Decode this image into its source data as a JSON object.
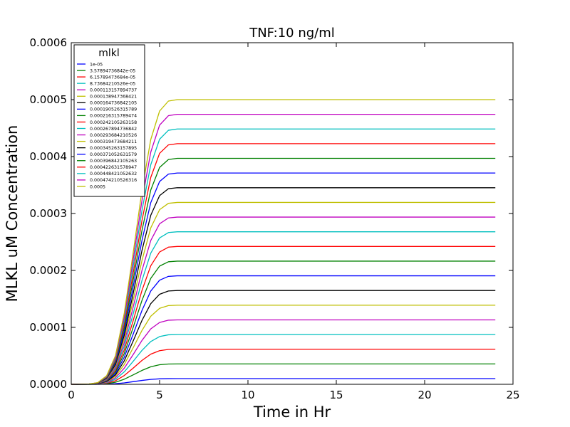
{
  "chart_data": {
    "type": "line",
    "title": "TNF:10 ng/ml",
    "xlabel": "Time in Hr",
    "ylabel": "MLKL uM Concentration",
    "xlim": [
      0,
      25
    ],
    "ylim": [
      0,
      0.0006
    ],
    "xticks": [
      0,
      5,
      10,
      15,
      20,
      25
    ],
    "xtick_labels": [
      "0",
      "5",
      "10",
      "15",
      "20",
      "25"
    ],
    "yticks": [
      0,
      0.0001,
      0.0002,
      0.0003,
      0.0004,
      0.0005,
      0.0006
    ],
    "ytick_labels": [
      "0.0000",
      "0.0001",
      "0.0002",
      "0.0003",
      "0.0004",
      "0.0005",
      "0.0006"
    ],
    "grid": false,
    "legend_title": "mlkl",
    "legend_position": "top-left",
    "x": [
      0,
      1,
      1.5,
      2,
      2.5,
      3,
      3.5,
      4,
      4.5,
      5,
      5.5,
      6,
      8,
      12,
      16,
      20,
      24
    ],
    "curve_shape": [
      0,
      0.001,
      0.006,
      0.03,
      0.1,
      0.25,
      0.46,
      0.68,
      0.86,
      0.96,
      0.995,
      1,
      1,
      1,
      1,
      1,
      1
    ],
    "series": [
      {
        "name": "1e-05",
        "plateau": 1e-05,
        "color": "#0000ff"
      },
      {
        "name": "3.57894736842e-05",
        "plateau": 3.57894736842e-05,
        "color": "#008000"
      },
      {
        "name": "6.15789473684e-05",
        "plateau": 6.15789473684e-05,
        "color": "#ff0000"
      },
      {
        "name": "8.73684210526e-05",
        "plateau": 8.73684210526e-05,
        "color": "#00bfbf"
      },
      {
        "name": "0.000113157894737",
        "plateau": 0.000113157894737,
        "color": "#bf00bf"
      },
      {
        "name": "0.000138947368421",
        "plateau": 0.000138947368421,
        "color": "#bfbf00"
      },
      {
        "name": "0.000164736842105",
        "plateau": 0.000164736842105,
        "color": "#000000"
      },
      {
        "name": "0.000190526315789",
        "plateau": 0.000190526315789,
        "color": "#0000ff"
      },
      {
        "name": "0.000216315789474",
        "plateau": 0.000216315789474,
        "color": "#008000"
      },
      {
        "name": "0.000242105263158",
        "plateau": 0.000242105263158,
        "color": "#ff0000"
      },
      {
        "name": "0.000267894736842",
        "plateau": 0.000267894736842,
        "color": "#00bfbf"
      },
      {
        "name": "0.000293684210526",
        "plateau": 0.000293684210526,
        "color": "#bf00bf"
      },
      {
        "name": "0.000319473684211",
        "plateau": 0.000319473684211,
        "color": "#bfbf00"
      },
      {
        "name": "0.000345263157895",
        "plateau": 0.000345263157895,
        "color": "#000000"
      },
      {
        "name": "0.000371052631579",
        "plateau": 0.000371052631579,
        "color": "#0000ff"
      },
      {
        "name": "0.000396842105263",
        "plateau": 0.000396842105263,
        "color": "#008000"
      },
      {
        "name": "0.000422631578947",
        "plateau": 0.000422631578947,
        "color": "#ff0000"
      },
      {
        "name": "0.000448421052632",
        "plateau": 0.000448421052632,
        "color": "#00bfbf"
      },
      {
        "name": "0.000474210526316",
        "plateau": 0.000474210526316,
        "color": "#bf00bf"
      },
      {
        "name": "0.0005",
        "plateau": 0.0005,
        "color": "#bfbf00"
      }
    ]
  }
}
